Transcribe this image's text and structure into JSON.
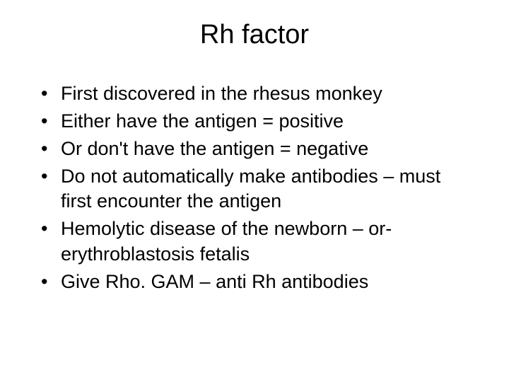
{
  "slide": {
    "title": "Rh factor",
    "bullets": [
      "First discovered in the rhesus monkey",
      "Either have the antigen = positive",
      "Or don't have the antigen = negative",
      "Do not automatically make antibodies – must first encounter the antigen",
      "Hemolytic disease of the newborn – or- erythroblastosis fetalis",
      "Give Rho. GAM – anti Rh antibodies"
    ]
  },
  "styling": {
    "background_color": "#ffffff",
    "text_color": "#000000",
    "title_fontsize": 38,
    "body_fontsize": 27,
    "font_family": "Arial"
  }
}
